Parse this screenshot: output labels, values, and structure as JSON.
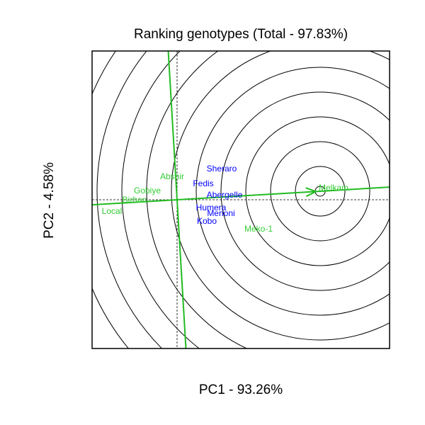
{
  "chart_data": {
    "type": "scatter",
    "title": "Ranking genotypes (Total - 97.83%)",
    "xlabel": "PC1 - 93.26%",
    "ylabel": "PC2 - 4.58%",
    "xlim": [
      -1.2,
      3.0
    ],
    "ylim": [
      -2.1,
      2.1
    ],
    "grid": false,
    "colors": {
      "genotype": "#0000FF",
      "environment": "#33CC33",
      "axis": "#22BB22"
    },
    "genotypes": [
      {
        "name": "Sheraro",
        "x": 0.63,
        "y": 0.44
      },
      {
        "name": "Fedis",
        "x": 0.37,
        "y": 0.23
      },
      {
        "name": "Abergelle",
        "x": 0.67,
        "y": 0.07
      },
      {
        "name": "Humera",
        "x": 0.48,
        "y": -0.11
      },
      {
        "name": "Menoni",
        "x": 0.62,
        "y": -0.19
      },
      {
        "name": "Kobo",
        "x": 0.42,
        "y": -0.3
      }
    ],
    "environments": [
      {
        "name": "Melkam",
        "x": 2.21,
        "y": 0.17
      },
      {
        "name": "Meko-1",
        "x": 1.15,
        "y": -0.41
      },
      {
        "name": "Abshir",
        "x": -0.07,
        "y": 0.33
      },
      {
        "name": "Gobiye",
        "x": -0.42,
        "y": 0.13
      },
      {
        "name": "Birhan",
        "x": -0.6,
        "y": 0.0
      },
      {
        "name": "Local",
        "x": -0.92,
        "y": -0.16
      }
    ],
    "ideal_point": {
      "x": 2.02,
      "y": 0.12
    },
    "circle_radii": [
      0.35,
      0.7,
      1.05,
      1.4,
      1.75,
      2.1,
      2.45,
      2.8,
      3.15,
      3.5
    ]
  }
}
